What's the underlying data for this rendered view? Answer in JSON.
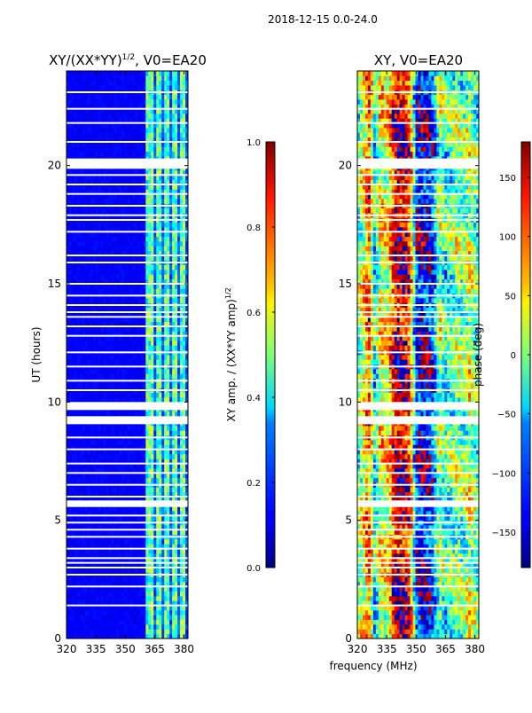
{
  "figure_title": "2018-12-15 0.0-24.0",
  "chart_data": [
    {
      "type": "heatmap",
      "title": "XY/(XX*YY)",
      "title_exponent": "1/2",
      "title_suffix": ", V0=EA20",
      "xlabel": "",
      "ylabel": "UT (hours)",
      "xlim": [
        320,
        382
      ],
      "ylim": [
        0,
        24
      ],
      "xticks": [
        "320",
        "335",
        "350",
        "365",
        "380"
      ],
      "xtick_values": [
        320,
        335,
        350,
        365,
        380
      ],
      "yticks": [
        "0",
        "5",
        "10",
        "15",
        "20"
      ],
      "ytick_values": [
        0,
        5,
        10,
        15,
        20
      ],
      "colorbar": {
        "label": "XY amp. / (XX*YY amp)",
        "label_exponent": "1/2",
        "range": [
          0.0,
          1.0
        ],
        "ticks": [
          "0.0",
          "0.2",
          "0.4",
          "0.6",
          "0.8",
          "1.0"
        ],
        "tick_values": [
          0.0,
          0.2,
          0.4,
          0.6,
          0.8,
          1.0
        ],
        "colormap": "jet"
      },
      "background_value": 0.1,
      "bright_channel_bands_mhz": [
        [
          361,
          364
        ],
        [
          366,
          369
        ],
        [
          370,
          373
        ],
        [
          374,
          377
        ],
        [
          378,
          380
        ]
      ],
      "bright_value_range": [
        0.3,
        0.6
      ],
      "flagged_ut_hours": [
        23.1,
        22.4,
        21.8,
        21.0,
        20.1,
        19.9,
        19.6,
        19.2,
        18.8,
        18.3,
        17.9,
        17.7,
        17.2,
        16.2,
        15.9,
        15.0,
        14.5,
        14.1,
        13.8,
        13.6,
        13.2,
        12.8,
        12.1,
        11.5,
        10.9,
        10.5,
        9.9,
        9.7,
        9.3,
        9.1,
        8.5,
        8.0,
        7.4,
        7.0,
        6.5,
        6.0,
        5.8,
        5.6,
        5.2,
        4.9,
        4.6,
        4.3,
        3.8,
        3.4,
        3.2,
        3.0,
        2.7,
        2.2,
        1.4
      ],
      "flagged_wide_ut_ranges": [
        [
          19.9,
          20.3
        ],
        [
          9.7,
          10.0
        ],
        [
          9.1,
          9.4
        ],
        [
          5.6,
          5.8
        ]
      ]
    },
    {
      "type": "heatmap",
      "title": "XY, V0=EA20",
      "xlabel": "frequency (MHz)",
      "ylabel": "",
      "xlim": [
        320,
        382
      ],
      "ylim": [
        0,
        24
      ],
      "xticks": [
        "320",
        "335",
        "350",
        "365",
        "380"
      ],
      "xtick_values": [
        320,
        335,
        350,
        365,
        380
      ],
      "yticks": [
        "0",
        "5",
        "10",
        "15",
        "20"
      ],
      "ytick_values": [
        0,
        5,
        10,
        15,
        20
      ],
      "colorbar": {
        "label": "phase (deg)",
        "range": [
          -180,
          180
        ],
        "ticks": [
          "−150",
          "−100",
          "−50",
          "0",
          "50",
          "100",
          "150"
        ],
        "tick_values": [
          -150,
          -100,
          -50,
          0,
          50,
          100,
          150
        ],
        "colormap": "jet"
      },
      "phase_profile_mhz_deg": [
        [
          320,
          -20
        ],
        [
          323,
          40
        ],
        [
          326,
          110
        ],
        [
          329,
          -60
        ],
        [
          332,
          60
        ],
        [
          335,
          20
        ],
        [
          338,
          120
        ],
        [
          341,
          160
        ],
        [
          344,
          150
        ],
        [
          347,
          120
        ],
        [
          350,
          -120
        ],
        [
          353,
          -150
        ],
        [
          356,
          -140
        ],
        [
          359,
          -100
        ],
        [
          362,
          20
        ],
        [
          365,
          -40
        ],
        [
          368,
          -20
        ],
        [
          371,
          10
        ],
        [
          374,
          -20
        ],
        [
          377,
          30
        ],
        [
          380,
          -10
        ],
        [
          382,
          -30
        ]
      ],
      "flagged_ut_hours": [
        23.1,
        22.4,
        21.8,
        21.0,
        20.1,
        19.9,
        19.6,
        19.2,
        18.8,
        18.3,
        17.9,
        17.7,
        17.2,
        16.2,
        15.9,
        15.0,
        14.5,
        14.1,
        13.8,
        13.6,
        13.2,
        12.8,
        12.1,
        11.5,
        10.9,
        10.5,
        9.9,
        9.7,
        9.3,
        9.1,
        8.5,
        8.0,
        7.4,
        7.0,
        6.5,
        6.0,
        5.8,
        5.6,
        5.2,
        4.9,
        4.6,
        4.3,
        3.8,
        3.4,
        3.2,
        3.0,
        2.7,
        2.2,
        1.4
      ],
      "flagged_wide_ut_ranges": [
        [
          19.9,
          20.3
        ],
        [
          9.7,
          10.0
        ],
        [
          9.1,
          9.4
        ],
        [
          5.6,
          5.8
        ]
      ]
    }
  ]
}
